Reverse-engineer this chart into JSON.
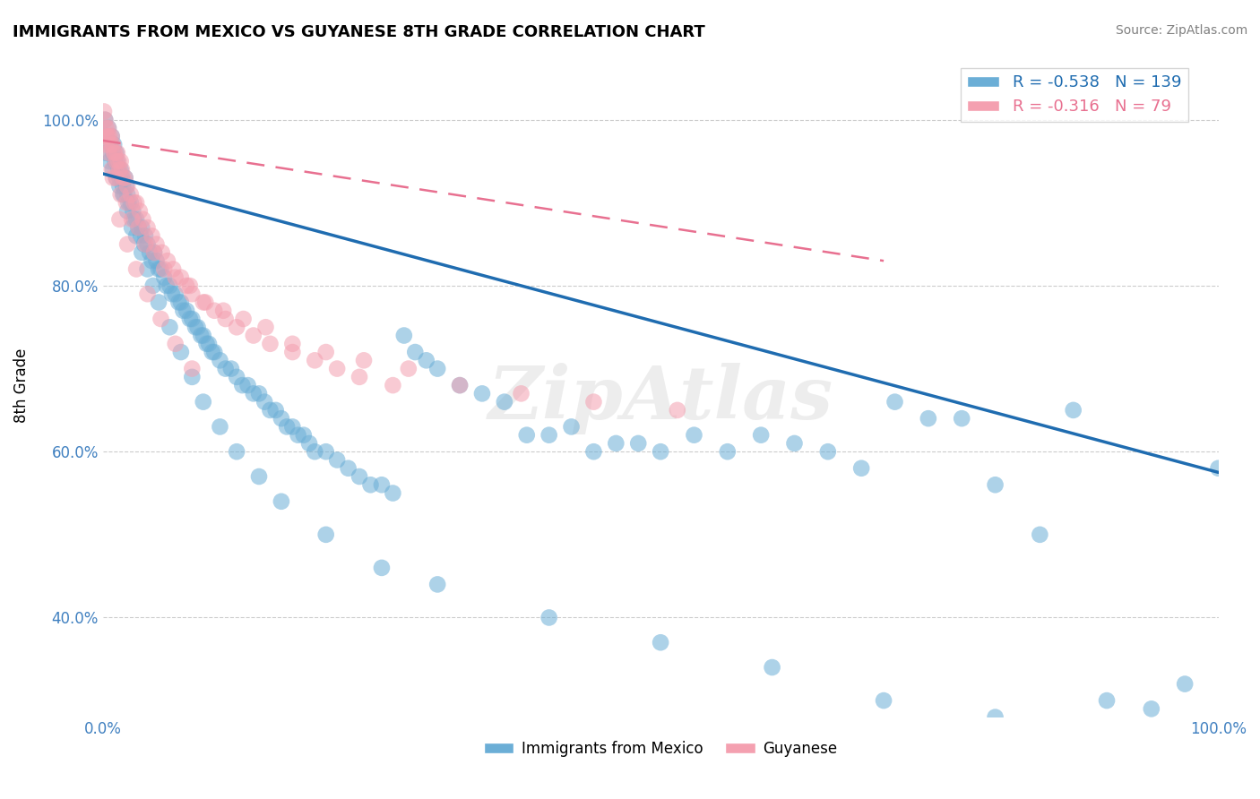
{
  "title": "IMMIGRANTS FROM MEXICO VS GUYANESE 8TH GRADE CORRELATION CHART",
  "source": "Source: ZipAtlas.com",
  "xlabel": "",
  "ylabel": "8th Grade",
  "legend_xlabel": "Immigrants from Mexico",
  "legend_ylabel": "Guyanese",
  "blue_R": -0.538,
  "blue_N": 139,
  "pink_R": -0.316,
  "pink_N": 79,
  "blue_color": "#6baed6",
  "pink_color": "#f4a0b0",
  "blue_line_color": "#1f6cb0",
  "pink_line_color": "#e87090",
  "xlim": [
    0.0,
    1.0
  ],
  "ylim": [
    0.28,
    1.08
  ],
  "blue_scatter_x": [
    0.002,
    0.003,
    0.005,
    0.007,
    0.008,
    0.009,
    0.01,
    0.011,
    0.012,
    0.013,
    0.014,
    0.015,
    0.016,
    0.017,
    0.018,
    0.019,
    0.02,
    0.021,
    0.022,
    0.023,
    0.025,
    0.027,
    0.028,
    0.03,
    0.032,
    0.034,
    0.035,
    0.037,
    0.038,
    0.04,
    0.042,
    0.044,
    0.046,
    0.048,
    0.05,
    0.052,
    0.055,
    0.057,
    0.06,
    0.062,
    0.065,
    0.068,
    0.07,
    0.072,
    0.075,
    0.078,
    0.08,
    0.083,
    0.085,
    0.088,
    0.09,
    0.093,
    0.095,
    0.098,
    0.1,
    0.105,
    0.11,
    0.115,
    0.12,
    0.125,
    0.13,
    0.135,
    0.14,
    0.145,
    0.15,
    0.155,
    0.16,
    0.165,
    0.17,
    0.175,
    0.18,
    0.185,
    0.19,
    0.2,
    0.21,
    0.22,
    0.23,
    0.24,
    0.25,
    0.26,
    0.27,
    0.28,
    0.29,
    0.3,
    0.32,
    0.34,
    0.36,
    0.38,
    0.4,
    0.42,
    0.44,
    0.46,
    0.48,
    0.5,
    0.53,
    0.56,
    0.59,
    0.62,
    0.65,
    0.68,
    0.71,
    0.74,
    0.77,
    0.8,
    0.84,
    0.87,
    0.9,
    0.94,
    0.97,
    1.0,
    0.003,
    0.006,
    0.009,
    0.012,
    0.015,
    0.018,
    0.022,
    0.026,
    0.03,
    0.035,
    0.04,
    0.045,
    0.05,
    0.06,
    0.07,
    0.08,
    0.09,
    0.105,
    0.12,
    0.14,
    0.16,
    0.2,
    0.25,
    0.3,
    0.4,
    0.5,
    0.6,
    0.7,
    0.8
  ],
  "blue_scatter_y": [
    1.0,
    0.98,
    0.99,
    0.97,
    0.98,
    0.96,
    0.97,
    0.95,
    0.96,
    0.95,
    0.94,
    0.93,
    0.94,
    0.93,
    0.92,
    0.91,
    0.93,
    0.92,
    0.91,
    0.9,
    0.9,
    0.89,
    0.88,
    0.88,
    0.87,
    0.86,
    0.87,
    0.85,
    0.86,
    0.85,
    0.84,
    0.83,
    0.84,
    0.83,
    0.82,
    0.82,
    0.81,
    0.8,
    0.8,
    0.79,
    0.79,
    0.78,
    0.78,
    0.77,
    0.77,
    0.76,
    0.76,
    0.75,
    0.75,
    0.74,
    0.74,
    0.73,
    0.73,
    0.72,
    0.72,
    0.71,
    0.7,
    0.7,
    0.69,
    0.68,
    0.68,
    0.67,
    0.67,
    0.66,
    0.65,
    0.65,
    0.64,
    0.63,
    0.63,
    0.62,
    0.62,
    0.61,
    0.6,
    0.6,
    0.59,
    0.58,
    0.57,
    0.56,
    0.56,
    0.55,
    0.74,
    0.72,
    0.71,
    0.7,
    0.68,
    0.67,
    0.66,
    0.62,
    0.62,
    0.63,
    0.6,
    0.61,
    0.61,
    0.6,
    0.62,
    0.6,
    0.62,
    0.61,
    0.6,
    0.58,
    0.66,
    0.64,
    0.64,
    0.56,
    0.5,
    0.65,
    0.3,
    0.29,
    0.32,
    0.58,
    0.96,
    0.95,
    0.94,
    0.93,
    0.92,
    0.91,
    0.89,
    0.87,
    0.86,
    0.84,
    0.82,
    0.8,
    0.78,
    0.75,
    0.72,
    0.69,
    0.66,
    0.63,
    0.6,
    0.57,
    0.54,
    0.5,
    0.46,
    0.44,
    0.4,
    0.37,
    0.34,
    0.3,
    0.28
  ],
  "pink_scatter_x": [
    0.001,
    0.002,
    0.003,
    0.004,
    0.005,
    0.006,
    0.007,
    0.008,
    0.009,
    0.01,
    0.011,
    0.012,
    0.013,
    0.014,
    0.015,
    0.016,
    0.017,
    0.018,
    0.02,
    0.022,
    0.025,
    0.028,
    0.03,
    0.033,
    0.036,
    0.04,
    0.044,
    0.048,
    0.053,
    0.058,
    0.063,
    0.07,
    0.075,
    0.08,
    0.09,
    0.1,
    0.11,
    0.12,
    0.135,
    0.15,
    0.17,
    0.19,
    0.21,
    0.23,
    0.26,
    0.003,
    0.005,
    0.008,
    0.012,
    0.016,
    0.021,
    0.026,
    0.032,
    0.038,
    0.046,
    0.055,
    0.065,
    0.078,
    0.092,
    0.108,
    0.126,
    0.146,
    0.17,
    0.2,
    0.234,
    0.274,
    0.32,
    0.375,
    0.44,
    0.515,
    0.004,
    0.009,
    0.015,
    0.022,
    0.03,
    0.04,
    0.052,
    0.065,
    0.08
  ],
  "pink_scatter_y": [
    1.01,
    1.0,
    0.99,
    0.98,
    0.99,
    0.98,
    0.97,
    0.98,
    0.97,
    0.96,
    0.96,
    0.95,
    0.96,
    0.95,
    0.94,
    0.95,
    0.94,
    0.93,
    0.93,
    0.92,
    0.91,
    0.9,
    0.9,
    0.89,
    0.88,
    0.87,
    0.86,
    0.85,
    0.84,
    0.83,
    0.82,
    0.81,
    0.8,
    0.79,
    0.78,
    0.77,
    0.76,
    0.75,
    0.74,
    0.73,
    0.72,
    0.71,
    0.7,
    0.69,
    0.68,
    0.97,
    0.96,
    0.94,
    0.93,
    0.91,
    0.9,
    0.88,
    0.87,
    0.85,
    0.84,
    0.82,
    0.81,
    0.8,
    0.78,
    0.77,
    0.76,
    0.75,
    0.73,
    0.72,
    0.71,
    0.7,
    0.68,
    0.67,
    0.66,
    0.65,
    0.98,
    0.93,
    0.88,
    0.85,
    0.82,
    0.79,
    0.76,
    0.73,
    0.7
  ],
  "blue_line_x": [
    0.0,
    1.0
  ],
  "blue_line_y_start": 0.935,
  "blue_line_y_end": 0.575,
  "pink_line_x": [
    0.0,
    0.7
  ],
  "pink_line_y_start": 0.975,
  "pink_line_y_end": 0.83,
  "watermark": "ZipAtlas",
  "tick_color": "#4080c0",
  "ytick_labels": [
    "40.0%",
    "60.0%",
    "80.0%",
    "100.0%"
  ],
  "ytick_values": [
    0.4,
    0.6,
    0.8,
    1.0
  ],
  "xtick_labels": [
    "0.0%",
    "100.0%"
  ],
  "xtick_values": [
    0.0,
    1.0
  ]
}
